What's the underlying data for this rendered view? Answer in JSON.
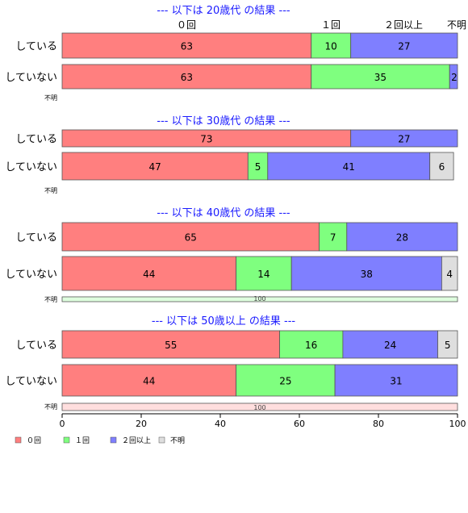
{
  "chart_data": {
    "type": "bar",
    "orientation": "horizontal-stacked-percent",
    "category_header_labels": [
      "０回",
      "１回",
      "２回以上",
      "不明"
    ],
    "series_colors": {
      "０回": "#ff7f7f",
      "１回": "#7fff7f",
      "２回以上": "#7f7fff",
      "不明": "#dedede"
    },
    "xlim": [
      0,
      100
    ],
    "xticks": [
      "0",
      "20",
      "40",
      "60",
      "80",
      "100"
    ],
    "grid": false,
    "legend": {
      "placement": "bottom-left",
      "entries": [
        "０回",
        "１回",
        "２回以上",
        "不明"
      ]
    },
    "panels": [
      {
        "title": "--- 以下は 20歳代 の結果 ---",
        "rows": [
          {
            "label": "している",
            "values": [
              63,
              10,
              27,
              0
            ]
          },
          {
            "label": "していない",
            "values": [
              63,
              35,
              2,
              0
            ]
          }
        ],
        "unknown": {
          "label": "不明",
          "value": null,
          "text": ""
        }
      },
      {
        "title": "--- 以下は 30歳代 の結果 ---",
        "rows": [
          {
            "label": "している",
            "values": [
              73,
              0,
              27,
              0
            ]
          },
          {
            "label": "していない",
            "values": [
              47,
              5,
              41,
              6
            ]
          }
        ],
        "unknown": {
          "label": "不明",
          "value": null,
          "text": ""
        }
      },
      {
        "title": "--- 以下は 40歳代 の結果 ---",
        "rows": [
          {
            "label": "している",
            "values": [
              65,
              7,
              28,
              0
            ]
          },
          {
            "label": "していない",
            "values": [
              44,
              14,
              38,
              4
            ]
          }
        ],
        "unknown": {
          "label": "不明",
          "value": 100,
          "text": "100",
          "series": "１回"
        }
      },
      {
        "title": "--- 以下は 50歳以上 の結果 ---",
        "rows": [
          {
            "label": "している",
            "values": [
              55,
              16,
              24,
              5
            ]
          },
          {
            "label": "していない",
            "values": [
              44,
              25,
              31,
              0
            ]
          }
        ],
        "unknown": {
          "label": "不明",
          "value": 100,
          "text": "100",
          "series": "０回"
        }
      }
    ]
  },
  "colors": {
    "title": "#1a1aff",
    "unknown_bar_0": "#ffdede",
    "unknown_bar_1": "#deffde"
  }
}
